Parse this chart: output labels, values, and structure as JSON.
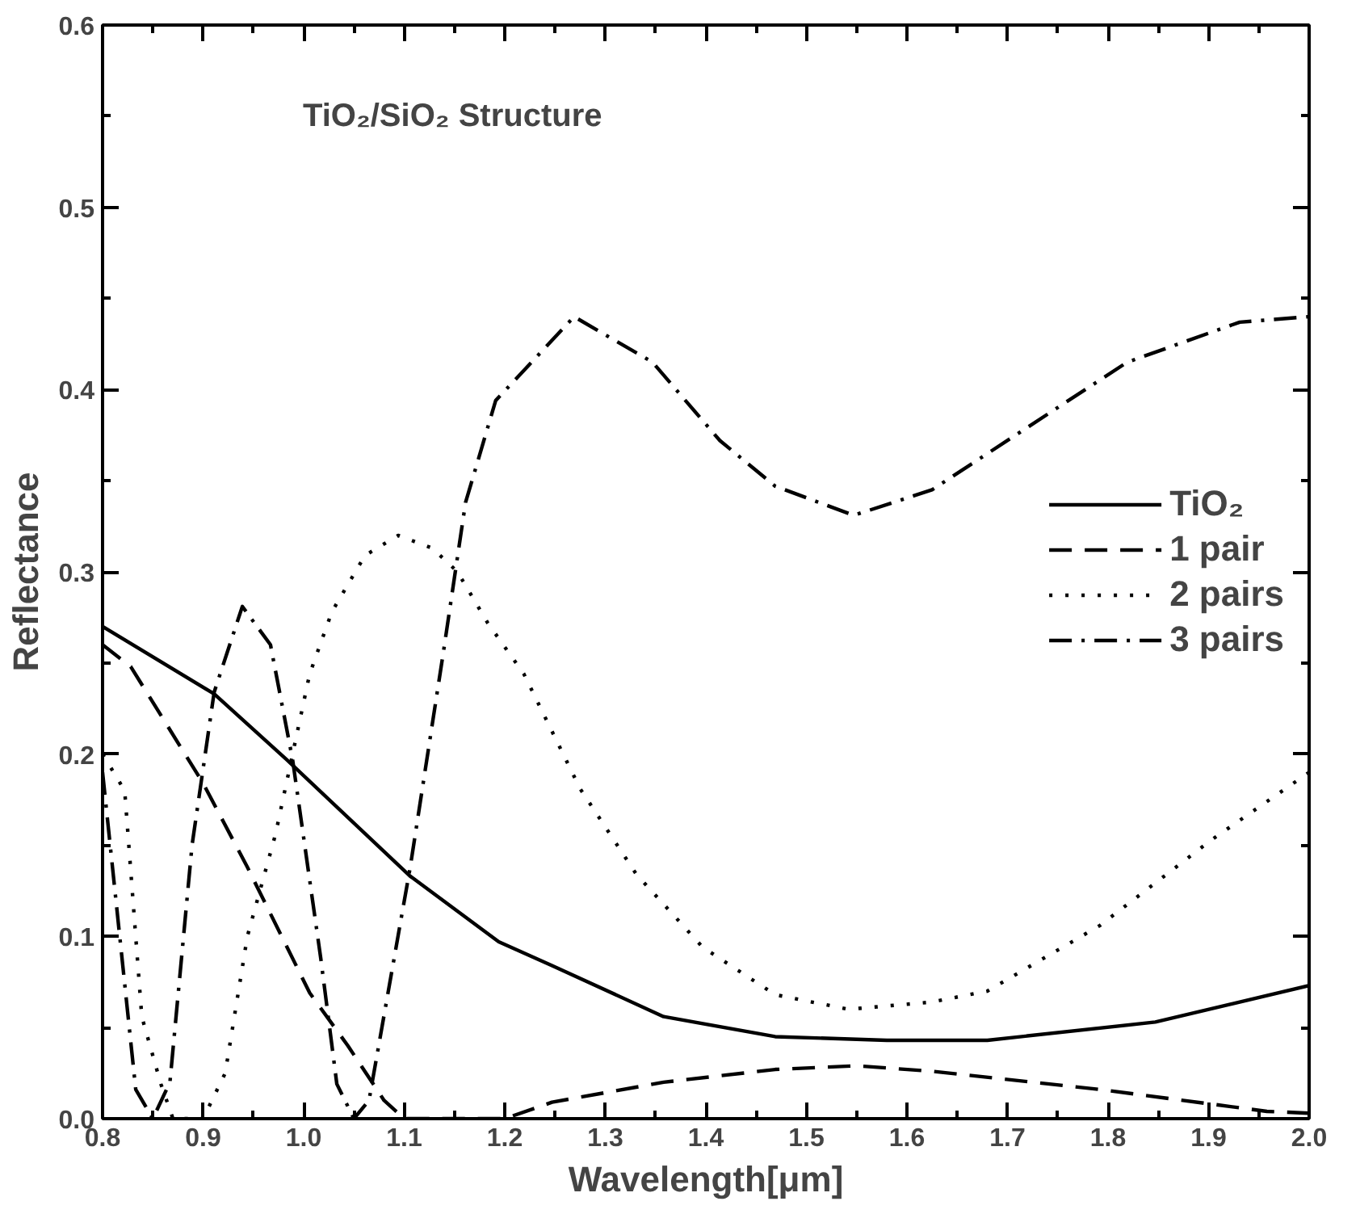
{
  "chart_data": {
    "type": "line",
    "xlabel": "Wavelength[μm]",
    "ylabel": "Reflectance",
    "annotations": [
      "TiO₂/SiO₂ Structure"
    ],
    "xlim": [
      0.8,
      2.0
    ],
    "ylim": [
      0.0,
      0.6
    ],
    "xticks": [
      0.8,
      0.9,
      {
        "value": 1.0,
        "label": "1.0"
      },
      1.1,
      1.2,
      1.3,
      1.4,
      1.5,
      1.6,
      1.7,
      1.8,
      1.9,
      {
        "value": 2.0,
        "label": "2.0"
      }
    ],
    "yticks": [
      {
        "value": 0.0,
        "label": "0.0"
      },
      0.1,
      0.2,
      0.3,
      0.4,
      0.5,
      0.6
    ],
    "legend": "right",
    "grid": false,
    "series": [
      {
        "name": "TiO₂",
        "color": "#000000",
        "line_style": "solid",
        "x": [
          0.8,
          0.911,
          0.983,
          1.106,
          1.194,
          1.247,
          1.358,
          1.469,
          1.58,
          1.68,
          1.847,
          2.0
        ],
        "values": [
          0.27,
          0.233,
          0.197,
          0.133,
          0.097,
          0.084,
          0.056,
          0.045,
          0.043,
          0.043,
          0.053,
          0.073
        ]
      },
      {
        "name": "1 pair",
        "color": "#000000",
        "line_style": "dashed",
        "x": [
          0.8,
          0.828,
          0.9,
          0.944,
          1.006,
          1.044,
          1.08,
          1.1,
          1.2,
          1.247,
          1.358,
          1.469,
          1.55,
          1.625,
          1.792,
          1.958,
          2.0
        ],
        "values": [
          0.26,
          0.248,
          0.184,
          0.138,
          0.069,
          0.04,
          0.01,
          0.0,
          0.0,
          0.009,
          0.02,
          0.027,
          0.029,
          0.026,
          0.016,
          0.004,
          0.003
        ]
      },
      {
        "name": "2 pairs",
        "color": "#000000",
        "line_style": "dotted",
        "x": [
          0.8,
          0.822,
          0.839,
          0.858,
          0.87,
          0.9,
          0.922,
          0.944,
          0.972,
          1.006,
          1.028,
          1.061,
          1.094,
          1.128,
          1.153,
          1.183,
          1.219,
          1.275,
          1.331,
          1.397,
          1.469,
          1.542,
          1.625,
          1.68,
          1.792,
          1.903,
          2.0
        ],
        "values": [
          0.2,
          0.18,
          0.056,
          0.019,
          0.0,
          0.0,
          0.025,
          0.1,
          0.156,
          0.244,
          0.278,
          0.309,
          0.32,
          0.313,
          0.3,
          0.272,
          0.244,
          0.181,
          0.134,
          0.094,
          0.068,
          0.06,
          0.064,
          0.07,
          0.106,
          0.153,
          0.19
        ]
      },
      {
        "name": "3 pairs",
        "color": "#000000",
        "line_style": "dashdot",
        "x": [
          0.8,
          0.833,
          0.85,
          0.867,
          0.889,
          0.911,
          0.939,
          0.967,
          0.989,
          1.017,
          1.033,
          1.05,
          1.065,
          1.106,
          1.139,
          1.161,
          1.191,
          1.269,
          1.347,
          1.414,
          1.469,
          1.547,
          1.625,
          1.708,
          1.819,
          1.931,
          2.0
        ],
        "values": [
          0.19,
          0.016,
          0.0,
          0.02,
          0.15,
          0.234,
          0.281,
          0.26,
          0.197,
          0.088,
          0.019,
          0.0,
          0.01,
          0.138,
          0.256,
          0.338,
          0.394,
          0.44,
          0.415,
          0.372,
          0.347,
          0.331,
          0.345,
          0.375,
          0.415,
          0.437,
          0.44
        ]
      }
    ]
  }
}
